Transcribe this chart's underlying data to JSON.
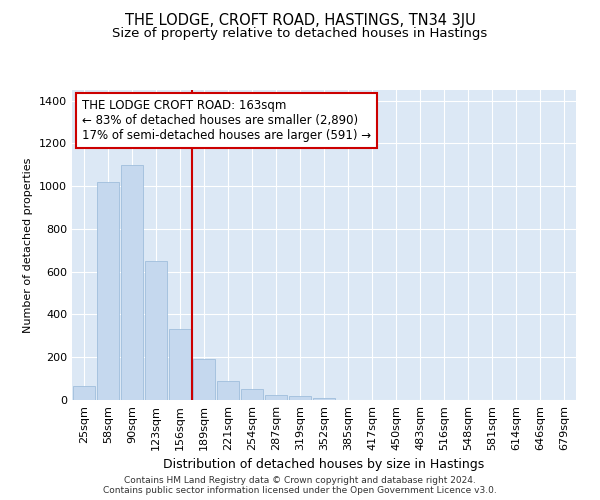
{
  "title": "THE LODGE, CROFT ROAD, HASTINGS, TN34 3JU",
  "subtitle": "Size of property relative to detached houses in Hastings",
  "xlabel": "Distribution of detached houses by size in Hastings",
  "ylabel": "Number of detached properties",
  "categories": [
    "25sqm",
    "58sqm",
    "90sqm",
    "123sqm",
    "156sqm",
    "189sqm",
    "221sqm",
    "254sqm",
    "287sqm",
    "319sqm",
    "352sqm",
    "385sqm",
    "417sqm",
    "450sqm",
    "483sqm",
    "516sqm",
    "548sqm",
    "581sqm",
    "614sqm",
    "646sqm",
    "679sqm"
  ],
  "values": [
    65,
    1020,
    1100,
    650,
    330,
    190,
    90,
    50,
    25,
    20,
    10,
    0,
    0,
    0,
    0,
    0,
    0,
    0,
    0,
    0,
    0
  ],
  "bar_color": "#c5d8ee",
  "bar_edge_color": "#a0bedc",
  "vline_color": "#cc0000",
  "annotation_line1": "THE LODGE CROFT ROAD: 163sqm",
  "annotation_line2": "← 83% of detached houses are smaller (2,890)",
  "annotation_line3": "17% of semi-detached houses are larger (591) →",
  "annotation_box_color": "#ffffff",
  "annotation_box_edge": "#cc0000",
  "ylim": [
    0,
    1450
  ],
  "yticks": [
    0,
    200,
    400,
    600,
    800,
    1000,
    1200,
    1400
  ],
  "plot_bg_color": "#dce8f5",
  "footer_text": "Contains HM Land Registry data © Crown copyright and database right 2024.\nContains public sector information licensed under the Open Government Licence v3.0.",
  "title_fontsize": 10.5,
  "subtitle_fontsize": 9.5,
  "xlabel_fontsize": 9,
  "ylabel_fontsize": 8,
  "tick_fontsize": 8,
  "annotation_fontsize": 8.5,
  "footer_fontsize": 6.5
}
